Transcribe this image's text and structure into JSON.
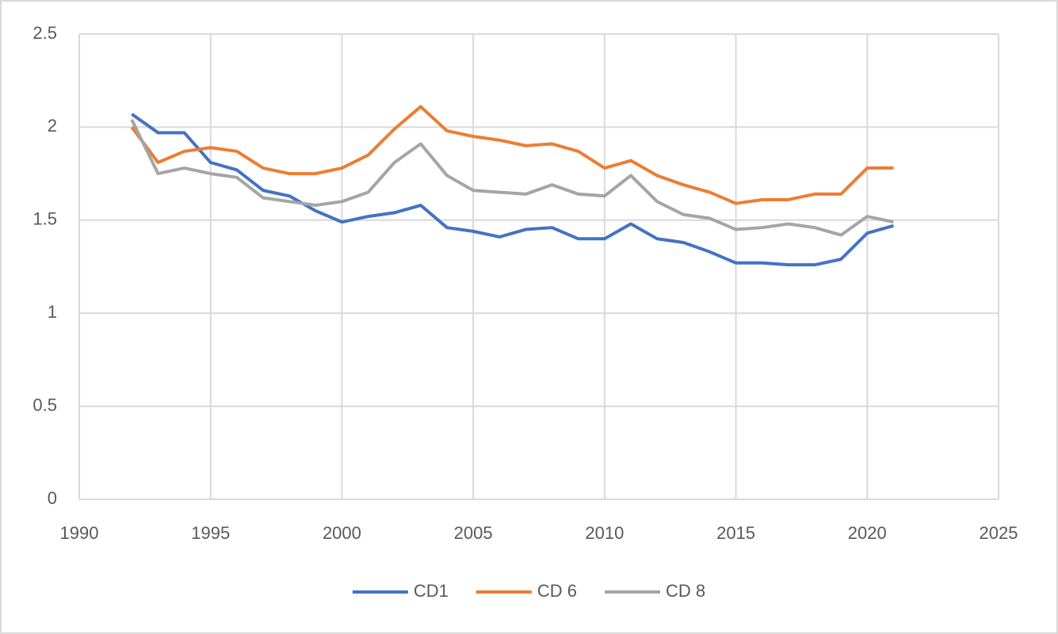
{
  "chart_data": {
    "type": "line",
    "x": [
      1992,
      1993,
      1994,
      1995,
      1996,
      1997,
      1998,
      1999,
      2000,
      2001,
      2002,
      2003,
      2004,
      2005,
      2006,
      2007,
      2008,
      2009,
      2010,
      2011,
      2012,
      2013,
      2014,
      2015,
      2016,
      2017,
      2018,
      2019,
      2020,
      2021
    ],
    "series": [
      {
        "name": "CD1",
        "color": "#4472c4",
        "values": [
          2.07,
          1.97,
          1.97,
          1.81,
          1.77,
          1.66,
          1.63,
          1.55,
          1.49,
          1.52,
          1.54,
          1.58,
          1.46,
          1.44,
          1.41,
          1.45,
          1.46,
          1.4,
          1.4,
          1.48,
          1.4,
          1.38,
          1.33,
          1.27,
          1.27,
          1.26,
          1.26,
          1.29,
          1.43,
          1.47
        ]
      },
      {
        "name": "CD 6",
        "color": "#ed7d31",
        "values": [
          2.0,
          1.81,
          1.87,
          1.89,
          1.87,
          1.78,
          1.75,
          1.75,
          1.78,
          1.85,
          1.99,
          2.11,
          1.98,
          1.95,
          1.93,
          1.9,
          1.91,
          1.87,
          1.78,
          1.82,
          1.74,
          1.69,
          1.65,
          1.59,
          1.61,
          1.61,
          1.64,
          1.64,
          1.78,
          1.78
        ]
      },
      {
        "name": "CD 8",
        "color": "#a5a5a5",
        "values": [
          2.04,
          1.75,
          1.78,
          1.75,
          1.73,
          1.62,
          1.6,
          1.58,
          1.6,
          1.65,
          1.81,
          1.91,
          1.74,
          1.66,
          1.65,
          1.64,
          1.69,
          1.64,
          1.63,
          1.74,
          1.6,
          1.53,
          1.51,
          1.45,
          1.46,
          1.48,
          1.46,
          1.42,
          1.52,
          1.49
        ]
      }
    ],
    "xlim": [
      1990,
      2025
    ],
    "xticks": [
      1990,
      1995,
      2000,
      2005,
      2010,
      2015,
      2020,
      2025
    ],
    "ylim": [
      0,
      2.5
    ],
    "yticks": [
      0,
      0.5,
      1,
      1.5,
      2,
      2.5
    ],
    "grid": true,
    "legend": "bottom"
  }
}
